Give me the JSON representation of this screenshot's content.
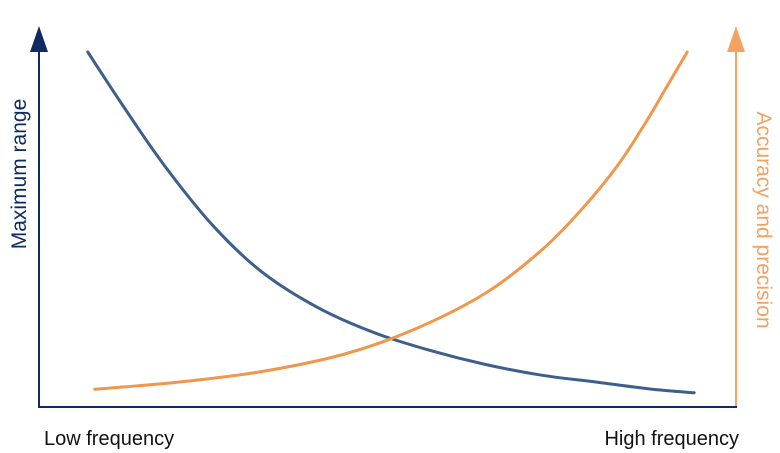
{
  "chart_data": {
    "type": "line",
    "title": "",
    "xlabel": "",
    "ylabel": "Maximum range",
    "y2label": "Accuracy and precision",
    "x_tick_labels": [
      "Low frequency",
      "High frequency"
    ],
    "xlim": [
      0,
      1
    ],
    "ylim": [
      0,
      1
    ],
    "grid": false,
    "legend": "none",
    "series": [
      {
        "axis": "left",
        "color": "#3d5f8c",
        "x": [
          0.07,
          0.12,
          0.18,
          0.25,
          0.32,
          0.4,
          0.48,
          0.56,
          0.64,
          0.72,
          0.8,
          0.88,
          0.94
        ],
        "y": [
          1.0,
          0.85,
          0.68,
          0.51,
          0.38,
          0.28,
          0.21,
          0.16,
          0.12,
          0.09,
          0.07,
          0.05,
          0.04
        ]
      },
      {
        "axis": "right",
        "color": "#f0974c",
        "x": [
          0.08,
          0.2,
          0.32,
          0.44,
          0.54,
          0.64,
          0.72,
          0.78,
          0.83,
          0.87,
          0.9,
          0.93
        ],
        "y": [
          0.05,
          0.07,
          0.1,
          0.15,
          0.22,
          0.32,
          0.44,
          0.56,
          0.68,
          0.8,
          0.9,
          1.0
        ]
      }
    ],
    "colors": {
      "left_axis": "#0e2b63",
      "right_axis": "#f4a262",
      "bottom_axis": "#0e2b63"
    }
  }
}
